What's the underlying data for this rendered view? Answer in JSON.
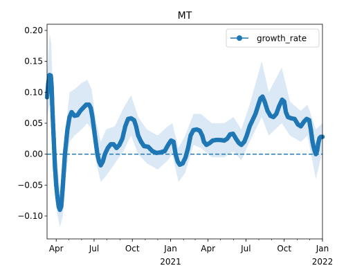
{
  "chart_data": {
    "type": "line",
    "title": "MT",
    "xlabel": "",
    "ylabel": "",
    "x_range": [
      "2020-03-10",
      "2022-01-01"
    ],
    "ylim": [
      -0.137,
      0.21
    ],
    "yticks": [
      -0.1,
      -0.05,
      0.0,
      0.05,
      0.1,
      0.15,
      0.2
    ],
    "ytick_labels": [
      "−0.10",
      "−0.05",
      "0.00",
      "0.05",
      "0.10",
      "0.15",
      "0.20"
    ],
    "xticks": [
      {
        "date": "2020-04-01",
        "label": "Apr",
        "sublabel": ""
      },
      {
        "date": "2020-07-01",
        "label": "Jul",
        "sublabel": ""
      },
      {
        "date": "2020-10-01",
        "label": "Oct",
        "sublabel": ""
      },
      {
        "date": "2021-01-01",
        "label": "Jan",
        "sublabel": "2021"
      },
      {
        "date": "2021-04-01",
        "label": "Apr",
        "sublabel": ""
      },
      {
        "date": "2021-07-01",
        "label": "Jul",
        "sublabel": ""
      },
      {
        "date": "2021-10-01",
        "label": "Oct",
        "sublabel": ""
      },
      {
        "date": "2022-01-01",
        "label": "Jan",
        "sublabel": "2022"
      }
    ],
    "minor_tick_months": true,
    "grid": false,
    "legend": {
      "position": "top-right",
      "entries": [
        "growth_rate"
      ]
    },
    "reference_line": {
      "y": 0.0,
      "style": "dashed"
    },
    "colors": {
      "series": "#1f77b4",
      "band": "#dbe8f5"
    },
    "series": [
      {
        "name": "growth_rate",
        "marker": "circle",
        "points": [
          [
            "2020-03-10",
            0.092
          ],
          [
            "2020-03-13",
            0.115
          ],
          [
            "2020-03-16",
            0.128
          ],
          [
            "2020-03-19",
            0.127
          ],
          [
            "2020-03-21",
            0.11
          ],
          [
            "2020-03-23",
            0.07
          ],
          [
            "2020-03-25",
            0.04
          ],
          [
            "2020-03-27",
            0.01
          ],
          [
            "2020-03-29",
            -0.02
          ],
          [
            "2020-04-01",
            -0.05
          ],
          [
            "2020-04-04",
            -0.07
          ],
          [
            "2020-04-07",
            -0.085
          ],
          [
            "2020-04-10",
            -0.09
          ],
          [
            "2020-04-13",
            -0.085
          ],
          [
            "2020-04-16",
            -0.06
          ],
          [
            "2020-04-19",
            -0.03
          ],
          [
            "2020-04-22",
            0.0
          ],
          [
            "2020-04-25",
            0.02
          ],
          [
            "2020-04-28",
            0.04
          ],
          [
            "2020-05-03",
            0.06
          ],
          [
            "2020-05-08",
            0.068
          ],
          [
            "2020-05-15",
            0.062
          ],
          [
            "2020-05-22",
            0.063
          ],
          [
            "2020-05-29",
            0.07
          ],
          [
            "2020-06-05",
            0.075
          ],
          [
            "2020-06-12",
            0.08
          ],
          [
            "2020-06-19",
            0.08
          ],
          [
            "2020-06-23",
            0.075
          ],
          [
            "2020-06-27",
            0.06
          ],
          [
            "2020-07-01",
            0.04
          ],
          [
            "2020-07-05",
            0.02
          ],
          [
            "2020-07-09",
            0.0
          ],
          [
            "2020-07-13",
            -0.012
          ],
          [
            "2020-07-17",
            -0.018
          ],
          [
            "2020-07-22",
            -0.012
          ],
          [
            "2020-07-27",
            0.0
          ],
          [
            "2020-08-03",
            0.01
          ],
          [
            "2020-08-10",
            0.016
          ],
          [
            "2020-08-17",
            0.016
          ],
          [
            "2020-08-24",
            0.01
          ],
          [
            "2020-08-31",
            0.015
          ],
          [
            "2020-09-07",
            0.025
          ],
          [
            "2020-09-14",
            0.045
          ],
          [
            "2020-09-21",
            0.057
          ],
          [
            "2020-09-28",
            0.058
          ],
          [
            "2020-10-05",
            0.055
          ],
          [
            "2020-10-10",
            0.045
          ],
          [
            "2020-10-15",
            0.03
          ],
          [
            "2020-10-22",
            0.02
          ],
          [
            "2020-10-29",
            0.013
          ],
          [
            "2020-11-08",
            0.012
          ],
          [
            "2020-11-18",
            0.005
          ],
          [
            "2020-11-28",
            0.002
          ],
          [
            "2020-12-08",
            0.003
          ],
          [
            "2020-12-18",
            0.005
          ],
          [
            "2020-12-26",
            0.015
          ],
          [
            "2021-01-02",
            0.022
          ],
          [
            "2021-01-08",
            0.02
          ],
          [
            "2021-01-13",
            0.0
          ],
          [
            "2021-01-18",
            -0.012
          ],
          [
            "2021-01-23",
            -0.017
          ],
          [
            "2021-01-30",
            -0.015
          ],
          [
            "2021-02-06",
            -0.005
          ],
          [
            "2021-02-12",
            0.01
          ],
          [
            "2021-02-18",
            0.03
          ],
          [
            "2021-02-25",
            0.039
          ],
          [
            "2021-03-05",
            0.04
          ],
          [
            "2021-03-12",
            0.038
          ],
          [
            "2021-03-18",
            0.03
          ],
          [
            "2021-03-22",
            0.02
          ],
          [
            "2021-03-28",
            0.015
          ],
          [
            "2021-04-05",
            0.018
          ],
          [
            "2021-04-12",
            0.022
          ],
          [
            "2021-04-20",
            0.023
          ],
          [
            "2021-04-30",
            0.023
          ],
          [
            "2021-05-10",
            0.022
          ],
          [
            "2021-05-17",
            0.025
          ],
          [
            "2021-05-24",
            0.032
          ],
          [
            "2021-05-31",
            0.033
          ],
          [
            "2021-06-07",
            0.025
          ],
          [
            "2021-06-14",
            0.018
          ],
          [
            "2021-06-20",
            0.015
          ],
          [
            "2021-06-27",
            0.02
          ],
          [
            "2021-07-03",
            0.03
          ],
          [
            "2021-07-10",
            0.045
          ],
          [
            "2021-07-17",
            0.055
          ],
          [
            "2021-07-24",
            0.065
          ],
          [
            "2021-07-31",
            0.08
          ],
          [
            "2021-08-05",
            0.09
          ],
          [
            "2021-08-10",
            0.093
          ],
          [
            "2021-08-15",
            0.085
          ],
          [
            "2021-08-22",
            0.07
          ],
          [
            "2021-08-29",
            0.062
          ],
          [
            "2021-09-05",
            0.06
          ],
          [
            "2021-09-12",
            0.065
          ],
          [
            "2021-09-19",
            0.078
          ],
          [
            "2021-09-26",
            0.088
          ],
          [
            "2021-10-01",
            0.085
          ],
          [
            "2021-10-05",
            0.068
          ],
          [
            "2021-10-10",
            0.06
          ],
          [
            "2021-10-18",
            0.058
          ],
          [
            "2021-10-26",
            0.057
          ],
          [
            "2021-11-03",
            0.048
          ],
          [
            "2021-11-10",
            0.045
          ],
          [
            "2021-11-17",
            0.052
          ],
          [
            "2021-11-24",
            0.057
          ],
          [
            "2021-11-30",
            0.055
          ],
          [
            "2021-12-04",
            0.04
          ],
          [
            "2021-12-08",
            0.02
          ],
          [
            "2021-12-12",
            0.008
          ],
          [
            "2021-12-16",
            0.0
          ],
          [
            "2021-12-19",
            0.005
          ],
          [
            "2021-12-22",
            0.018
          ],
          [
            "2021-12-25",
            0.026
          ],
          [
            "2021-12-28",
            0.028
          ],
          [
            "2022-01-01",
            0.028
          ]
        ]
      }
    ],
    "band": [
      [
        "2020-03-10",
        0.06,
        0.12
      ],
      [
        "2020-03-16",
        0.08,
        0.195
      ],
      [
        "2020-03-20",
        0.075,
        0.18
      ],
      [
        "2020-03-23",
        0.03,
        0.11
      ],
      [
        "2020-03-28",
        -0.04,
        0.06
      ],
      [
        "2020-04-03",
        -0.095,
        -0.01
      ],
      [
        "2020-04-10",
        -0.118,
        -0.055
      ],
      [
        "2020-04-17",
        -0.1,
        -0.02
      ],
      [
        "2020-04-24",
        -0.04,
        0.04
      ],
      [
        "2020-05-03",
        0.02,
        0.1
      ],
      [
        "2020-05-15",
        0.03,
        0.105
      ],
      [
        "2020-06-01",
        0.04,
        0.115
      ],
      [
        "2020-06-15",
        0.05,
        0.12
      ],
      [
        "2020-06-25",
        0.04,
        0.105
      ],
      [
        "2020-07-05",
        -0.01,
        0.055
      ],
      [
        "2020-07-17",
        -0.045,
        0.02
      ],
      [
        "2020-07-30",
        -0.035,
        0.04
      ],
      [
        "2020-08-20",
        -0.015,
        0.045
      ],
      [
        "2020-09-10",
        0.005,
        0.075
      ],
      [
        "2020-09-28",
        0.03,
        0.095
      ],
      [
        "2020-10-15",
        0.0,
        0.06
      ],
      [
        "2020-11-05",
        -0.015,
        0.04
      ],
      [
        "2020-12-01",
        -0.025,
        0.03
      ],
      [
        "2020-12-25",
        -0.01,
        0.045
      ],
      [
        "2021-01-05",
        0.0,
        0.05
      ],
      [
        "2021-01-20",
        -0.045,
        0.01
      ],
      [
        "2021-02-05",
        -0.03,
        0.03
      ],
      [
        "2021-02-25",
        0.015,
        0.065
      ],
      [
        "2021-03-15",
        0.01,
        0.065
      ],
      [
        "2021-04-10",
        -0.005,
        0.05
      ],
      [
        "2021-05-10",
        -0.005,
        0.05
      ],
      [
        "2021-06-01",
        0.005,
        0.06
      ],
      [
        "2021-06-20",
        -0.01,
        0.04
      ],
      [
        "2021-07-10",
        0.02,
        0.08
      ],
      [
        "2021-08-08",
        0.06,
        0.15
      ],
      [
        "2021-08-25",
        0.03,
        0.1
      ],
      [
        "2021-09-25",
        0.05,
        0.14
      ],
      [
        "2021-10-15",
        0.03,
        0.085
      ],
      [
        "2021-11-10",
        0.02,
        0.07
      ],
      [
        "2021-11-26",
        0.03,
        0.08
      ],
      [
        "2021-12-16",
        -0.04,
        0.04
      ],
      [
        "2022-01-01",
        0.005,
        0.05
      ]
    ]
  }
}
